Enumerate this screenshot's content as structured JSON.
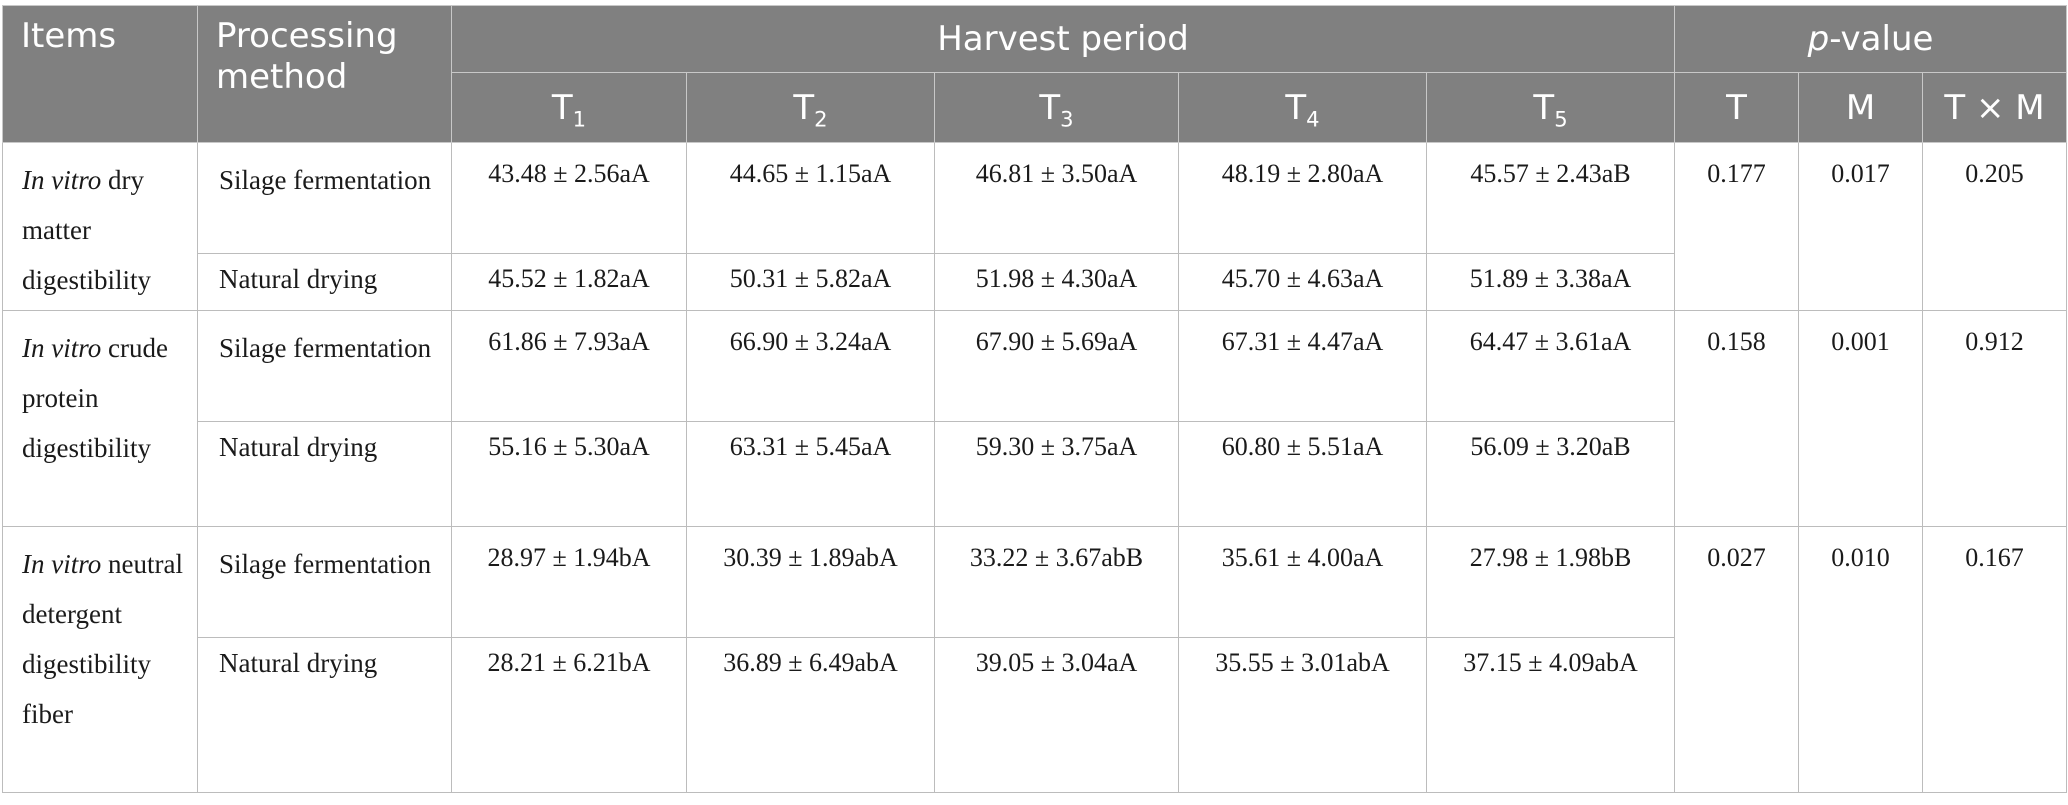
{
  "header": {
    "items": "Items",
    "processing_method": "Processing method",
    "harvest_period": "Harvest period",
    "p_value_italic": "p",
    "p_value_rest": "-value",
    "periods": [
      {
        "base": "T",
        "sub": "1"
      },
      {
        "base": "T",
        "sub": "2"
      },
      {
        "base": "T",
        "sub": "3"
      },
      {
        "base": "T",
        "sub": "4"
      },
      {
        "base": "T",
        "sub": "5"
      }
    ],
    "p_cols": [
      "T",
      "M",
      "T × M"
    ]
  },
  "rows": [
    {
      "item_italic": "In vitro",
      "item_rest": " dry matter digestibility",
      "methods": [
        {
          "name": "Silage fermentation",
          "values": [
            "43.48 ± 2.56aA",
            "44.65 ± 1.15aA",
            "46.81 ± 3.50aA",
            "48.19 ± 2.80aA",
            "45.57 ± 2.43aB"
          ]
        },
        {
          "name": "Natural drying",
          "values": [
            "45.52 ± 1.82aA",
            "50.31 ± 5.82aA",
            "51.98 ± 4.30aA",
            "45.70 ± 4.63aA",
            "51.89 ± 3.38aA"
          ]
        }
      ],
      "p": [
        "0.177",
        "0.017",
        "0.205"
      ]
    },
    {
      "item_italic": "In vitro",
      "item_rest": " crude protein digestibility",
      "methods": [
        {
          "name": "Silage fermentation",
          "values": [
            "61.86 ± 7.93aA",
            "66.90 ± 3.24aA",
            "67.90 ± 5.69aA",
            "67.31 ± 4.47aA",
            "64.47 ± 3.61aA"
          ]
        },
        {
          "name": "Natural drying",
          "values": [
            "55.16 ± 5.30aA",
            "63.31 ± 5.45aA",
            "59.30 ± 3.75aA",
            "60.80 ± 5.51aA",
            "56.09 ± 3.20aB"
          ]
        }
      ],
      "p": [
        "0.158",
        "0.001",
        "0.912"
      ]
    },
    {
      "item_italic": "In vitro",
      "item_rest": " neutral detergent digestibility fiber",
      "methods": [
        {
          "name": "Silage fermentation",
          "values": [
            "28.97 ± 1.94bA",
            "30.39 ± 1.89abA",
            "33.22 ± 3.67abB",
            "35.61 ± 4.00aA",
            "27.98 ± 1.98bB"
          ]
        },
        {
          "name": "Natural drying",
          "values": [
            "28.21 ± 6.21bA",
            "36.89 ± 6.49abA",
            "39.05 ± 3.04aA",
            "35.55 ± 3.01abA",
            "37.15 ± 4.09abA"
          ]
        }
      ],
      "p": [
        "0.027",
        "0.010",
        "0.167"
      ]
    }
  ]
}
